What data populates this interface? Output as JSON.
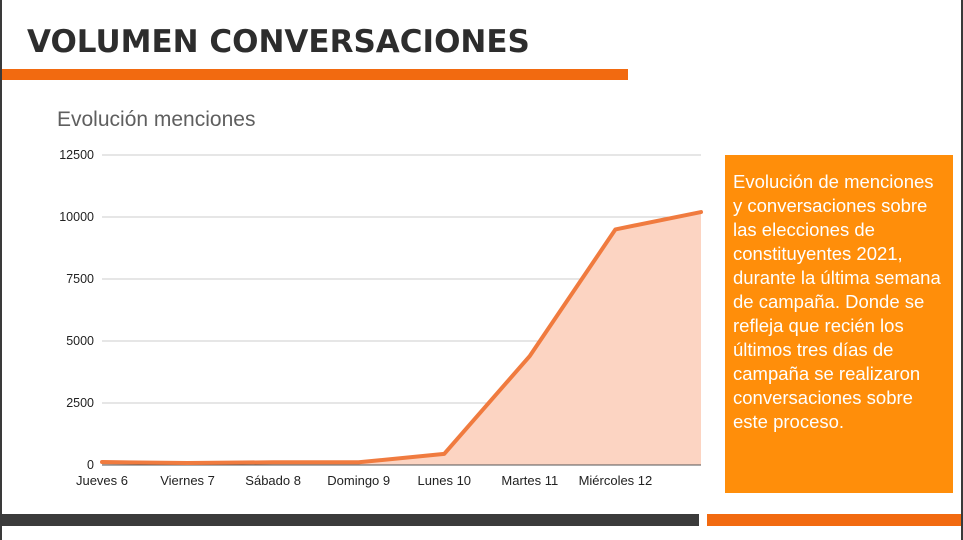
{
  "slide": {
    "title": "VOLUMEN CONVERSACIONES",
    "callout_text": "Evolución de menciones y conversaciones sobre las elecciones de constituyentes 2021, durante la última semana de campaña. Donde se refleja que recién los últimos tres días de campaña se realizaron conversaciones sobre este proceso."
  },
  "colors": {
    "accent": "#f26a10",
    "line": "#f07b3f",
    "area": "#fcd4c2",
    "callout_bg": "#ff8e0a",
    "dark_bar": "#3b3b3b",
    "grid": "#cccccc"
  },
  "chart_data": {
    "type": "area",
    "title": "Evolución menciones",
    "xlabel": "",
    "ylabel": "",
    "categories": [
      "Jueves 6",
      "Viernes 7",
      "Sábado 8",
      "Domingo 9",
      "Lunes 10",
      "Martes 11",
      "Miércoles 12",
      ""
    ],
    "series": [
      {
        "values": [
          120,
          80,
          110,
          110,
          450,
          4400,
          9500,
          10200
        ]
      }
    ],
    "y_ticks": [
      0,
      2500,
      5000,
      7500,
      10000,
      12500
    ],
    "ylim": [
      0,
      12500
    ],
    "grid": true,
    "legend": "none"
  }
}
